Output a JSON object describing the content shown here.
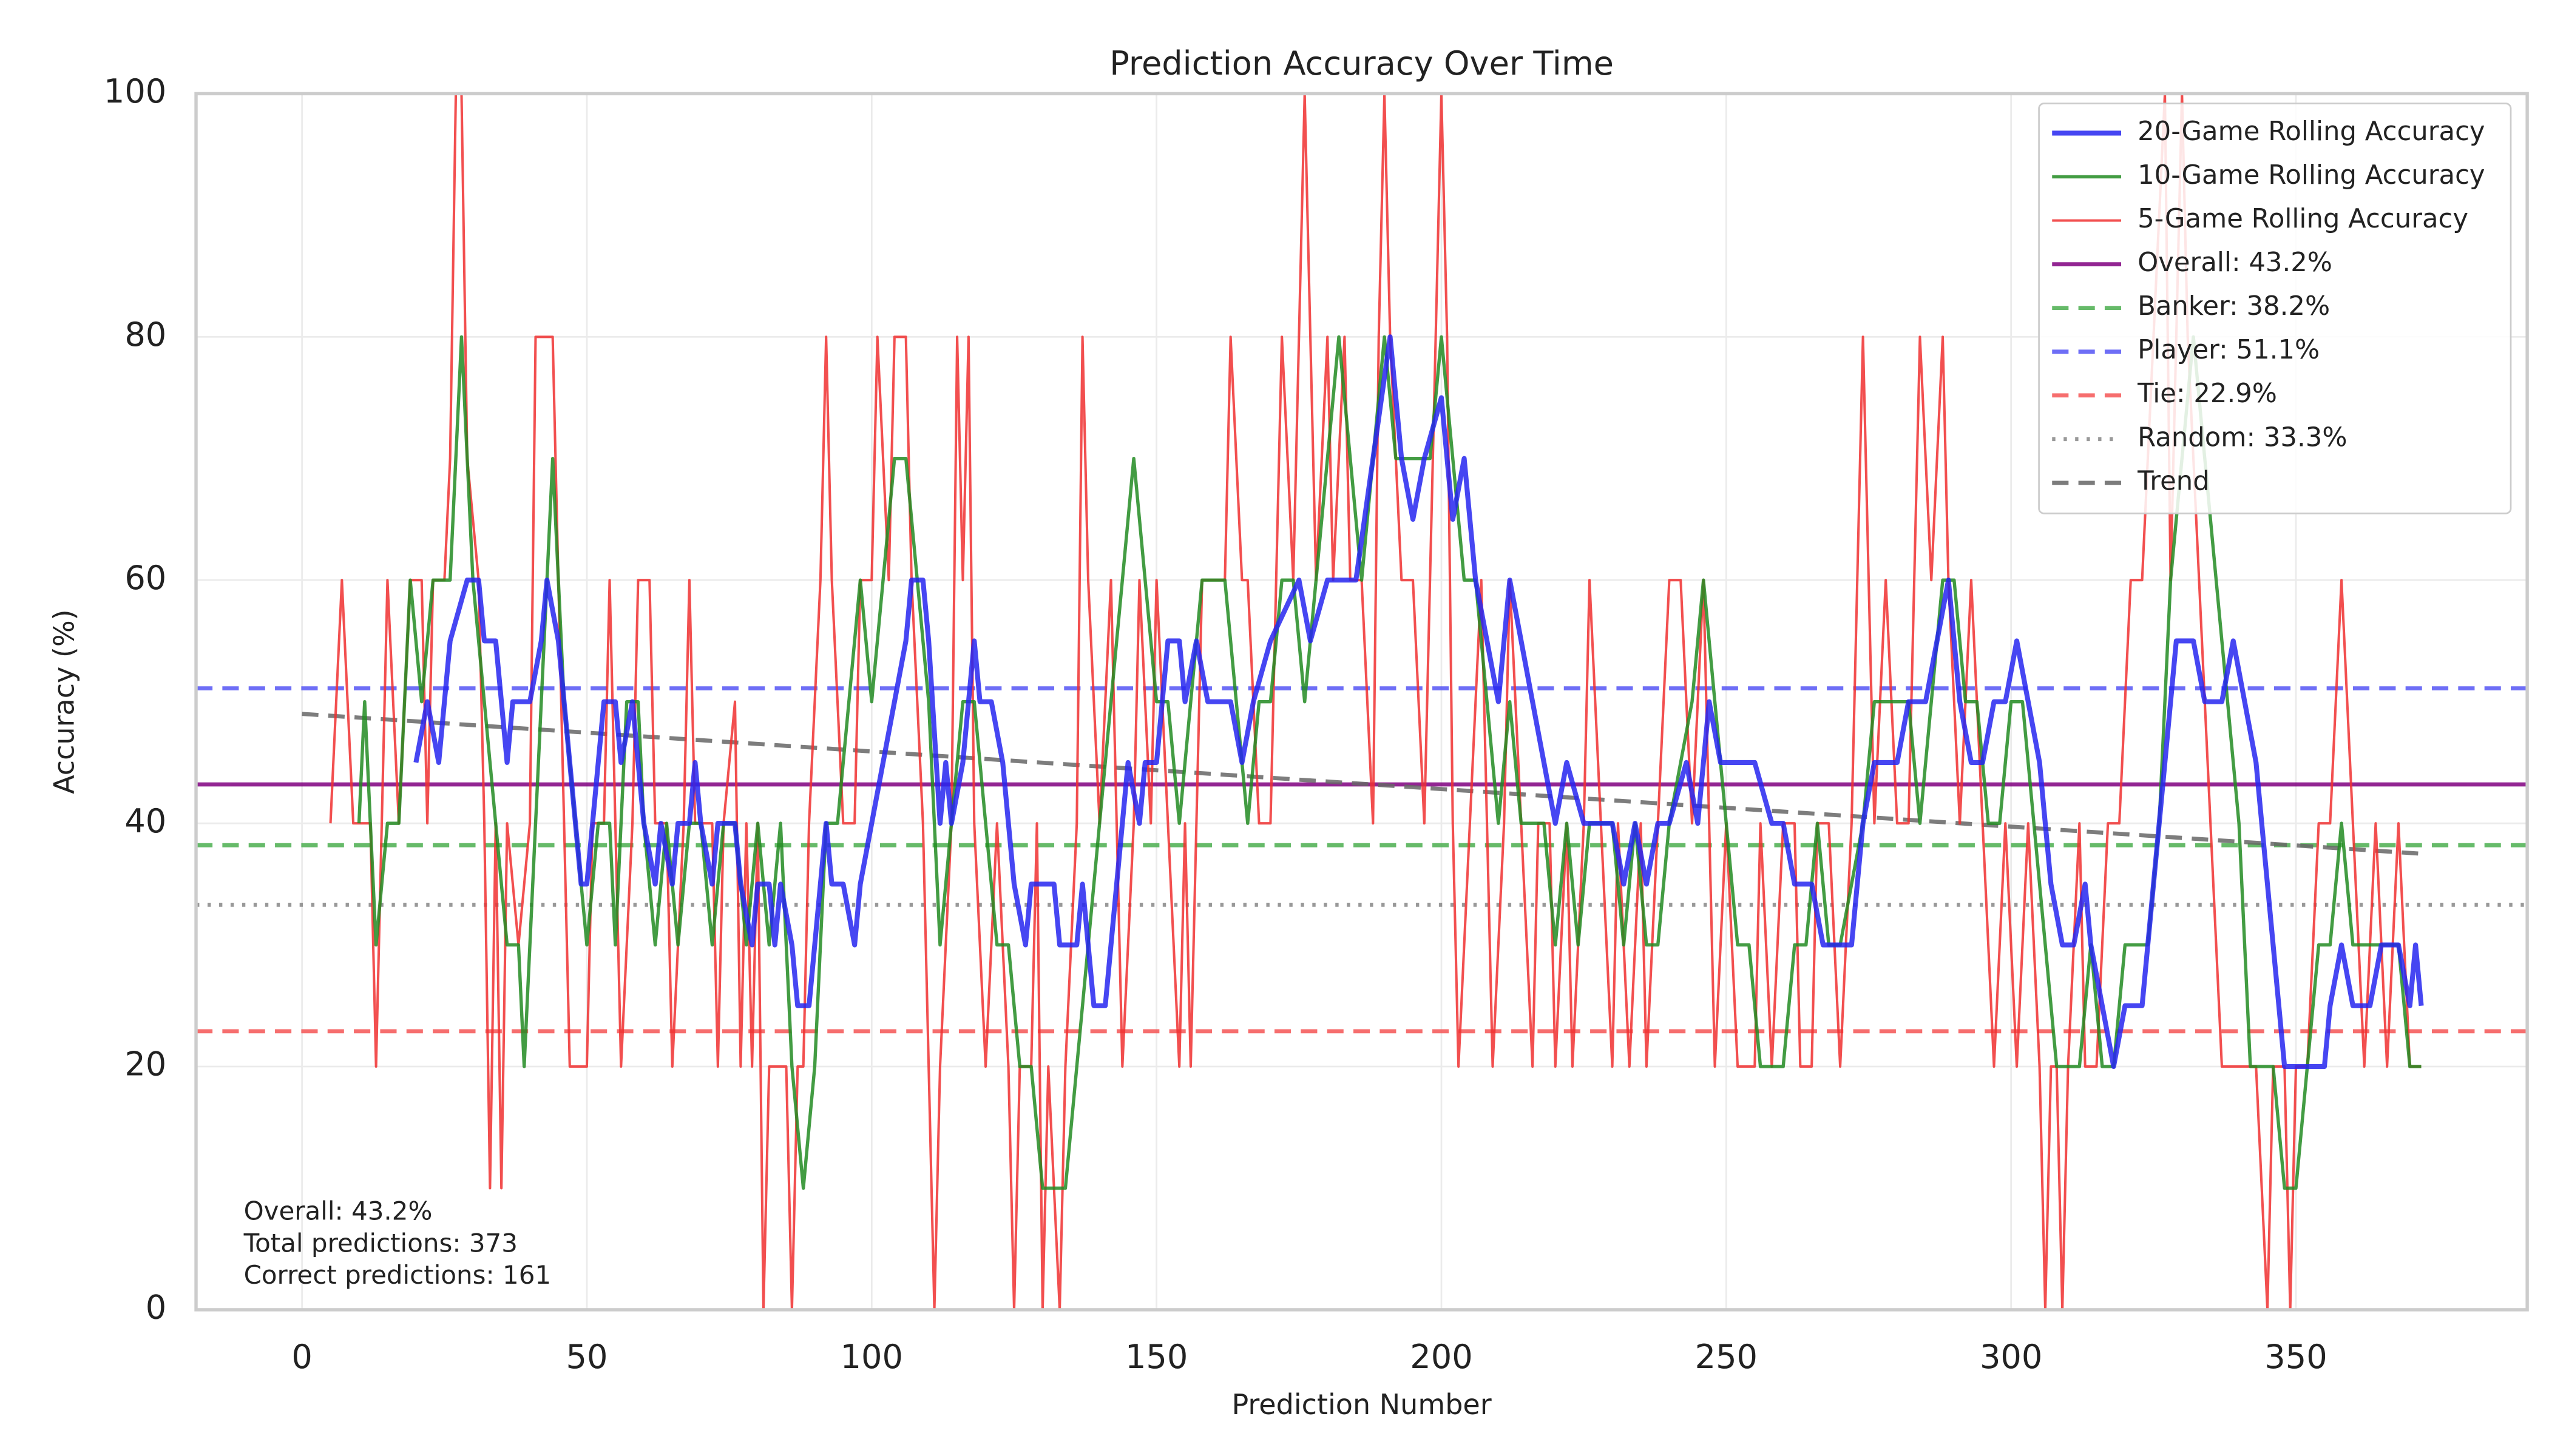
{
  "chart_data": {
    "type": "line",
    "title": "Prediction Accuracy Over Time",
    "x_label": "Prediction Number",
    "y_label": "Accuracy (%)",
    "xlim": [
      -18.6,
      390.6
    ],
    "ylim": [
      0,
      100
    ],
    "xticks": [
      0,
      50,
      100,
      150,
      200,
      250,
      300,
      350
    ],
    "yticks": [
      0,
      20,
      40,
      60,
      80,
      100
    ],
    "grid": true,
    "legend": "upper right",
    "annotation": [
      "Overall: 43.2%",
      "Total predictions: 373",
      "Correct predictions: 161"
    ],
    "series": [
      {
        "name": "20-Game Rolling Accuracy",
        "color": "#2626f0",
        "linestyle": "solid",
        "linewidth": 3,
        "x": [
          20,
          22,
          24,
          26,
          29,
          31,
          32,
          34,
          36,
          37,
          40,
          42,
          43,
          45,
          47,
          49,
          50,
          52,
          53,
          55,
          56,
          58,
          59,
          60,
          62,
          63,
          65,
          66,
          68,
          69,
          70,
          72,
          73,
          76,
          77,
          79,
          80,
          82,
          83,
          84,
          86,
          87,
          89,
          90,
          92,
          93,
          95,
          97,
          98,
          100,
          102,
          104,
          106,
          107,
          109,
          110,
          112,
          113,
          114,
          116,
          118,
          119,
          121,
          123,
          125,
          127,
          128,
          132,
          133,
          136,
          137,
          138,
          139,
          141,
          142,
          144,
          145,
          147,
          148,
          150,
          151,
          152,
          154,
          155,
          157,
          159,
          163,
          165,
          167,
          170,
          175,
          177,
          180,
          185,
          188,
          191,
          193,
          195,
          197,
          200,
          202,
          204,
          206,
          208,
          210,
          212,
          214,
          216,
          218,
          220,
          222,
          225,
          230,
          232,
          234,
          236,
          238,
          240,
          243,
          245,
          247,
          249,
          255,
          258,
          260,
          262,
          265,
          267,
          272,
          274,
          276,
          280,
          282,
          285,
          287,
          289,
          291,
          293,
          295,
          297,
          299,
          301,
          303,
          305,
          307,
          309,
          311,
          313,
          314,
          316,
          318,
          320,
          323,
          325,
          327,
          329,
          332,
          334,
          337,
          339,
          341,
          343,
          345,
          347,
          348,
          355,
          356,
          358,
          360,
          363,
          365,
          368,
          370,
          371,
          372
        ],
        "values": [
          45,
          50,
          45,
          55,
          60,
          60,
          55,
          55,
          45,
          50,
          50,
          55,
          60,
          55,
          45,
          35,
          35,
          45,
          50,
          50,
          45,
          50,
          45,
          40,
          35,
          40,
          35,
          40,
          40,
          45,
          40,
          35,
          40,
          40,
          35,
          30,
          35,
          35,
          30,
          35,
          30,
          25,
          25,
          30,
          40,
          35,
          35,
          30,
          35,
          40,
          45,
          50,
          55,
          60,
          60,
          55,
          40,
          45,
          40,
          45,
          55,
          50,
          50,
          45,
          35,
          30,
          35,
          35,
          30,
          30,
          35,
          30,
          25,
          25,
          30,
          40,
          45,
          40,
          45,
          45,
          50,
          55,
          55,
          50,
          55,
          50,
          50,
          45,
          50,
          55,
          60,
          55,
          60,
          60,
          70,
          80,
          70,
          65,
          70,
          75,
          65,
          70,
          60,
          55,
          50,
          60,
          55,
          50,
          45,
          40,
          45,
          40,
          40,
          35,
          40,
          35,
          40,
          40,
          45,
          40,
          50,
          45,
          45,
          40,
          40,
          35,
          35,
          30,
          30,
          40,
          45,
          45,
          50,
          50,
          55,
          60,
          50,
          45,
          45,
          50,
          50,
          55,
          50,
          45,
          35,
          30,
          30,
          35,
          30,
          25,
          20,
          25,
          25,
          35,
          45,
          55,
          55,
          50,
          50,
          55,
          50,
          45,
          35,
          25,
          20,
          20,
          25,
          30,
          25,
          25,
          30,
          30,
          25,
          30,
          25
        ]
      },
      {
        "name": "10-Game Rolling Accuracy",
        "color": "#228b22",
        "linestyle": "solid",
        "linewidth": 2,
        "x": [
          10,
          11,
          13,
          15,
          17,
          19,
          21,
          23,
          26,
          28,
          30,
          32,
          34,
          36,
          38,
          39,
          41,
          42,
          44,
          46,
          48,
          50,
          52,
          54,
          55,
          57,
          59,
          60,
          62,
          64,
          66,
          68,
          70,
          72,
          74,
          76,
          78,
          80,
          82,
          84,
          86,
          88,
          90,
          92,
          94,
          96,
          98,
          100,
          102,
          104,
          106,
          108,
          110,
          112,
          114,
          116,
          118,
          120,
          122,
          124,
          126,
          128,
          130,
          134,
          136,
          138,
          140,
          142,
          144,
          146,
          148,
          150,
          152,
          154,
          156,
          158,
          162,
          164,
          166,
          168,
          170,
          172,
          174,
          176,
          178,
          180,
          182,
          184,
          186,
          188,
          190,
          192,
          194,
          196,
          198,
          200,
          202,
          204,
          206,
          208,
          210,
          212,
          214,
          216,
          218,
          220,
          222,
          224,
          226,
          228,
          230,
          232,
          234,
          236,
          238,
          240,
          244,
          246,
          248,
          250,
          252,
          254,
          256,
          260,
          262,
          264,
          266,
          268,
          270,
          274,
          276,
          278,
          280,
          282,
          284,
          286,
          288,
          290,
          292,
          294,
          296,
          298,
          300,
          302,
          304,
          306,
          308,
          310,
          312,
          314,
          316,
          318,
          320,
          324,
          326,
          328,
          330,
          332,
          334,
          336,
          338,
          340,
          342,
          346,
          348,
          350,
          352,
          354,
          356,
          358,
          360,
          364,
          366,
          368,
          370,
          372
        ],
        "values": [
          40,
          50,
          30,
          40,
          40,
          60,
          50,
          60,
          60,
          80,
          60,
          50,
          40,
          30,
          30,
          20,
          40,
          50,
          70,
          50,
          40,
          30,
          40,
          40,
          30,
          50,
          50,
          40,
          30,
          40,
          30,
          40,
          40,
          30,
          40,
          40,
          30,
          40,
          30,
          40,
          20,
          10,
          20,
          40,
          40,
          50,
          60,
          50,
          60,
          70,
          70,
          60,
          50,
          30,
          40,
          50,
          50,
          40,
          30,
          30,
          20,
          20,
          10,
          10,
          20,
          30,
          40,
          50,
          60,
          70,
          60,
          50,
          50,
          40,
          50,
          60,
          60,
          50,
          40,
          50,
          50,
          60,
          60,
          50,
          60,
          70,
          80,
          70,
          60,
          70,
          80,
          70,
          70,
          70,
          70,
          80,
          70,
          60,
          60,
          50,
          40,
          50,
          40,
          40,
          40,
          30,
          40,
          30,
          40,
          40,
          40,
          30,
          40,
          30,
          30,
          40,
          50,
          60,
          50,
          40,
          30,
          30,
          20,
          20,
          30,
          30,
          40,
          30,
          30,
          40,
          50,
          50,
          50,
          50,
          40,
          50,
          60,
          60,
          50,
          50,
          40,
          40,
          50,
          50,
          40,
          30,
          20,
          20,
          20,
          30,
          20,
          20,
          30,
          30,
          40,
          60,
          70,
          80,
          70,
          60,
          50,
          40,
          20,
          20,
          10,
          10,
          20,
          30,
          30,
          40,
          30,
          30,
          30,
          30,
          20,
          20
        ]
      },
      {
        "name": "5-Game Rolling Accuracy",
        "color": "#f03030",
        "linestyle": "solid",
        "linewidth": 1.5,
        "x": [
          5,
          7,
          9,
          12,
          13,
          15,
          17,
          19,
          21,
          22,
          23,
          25,
          26,
          27,
          28,
          29,
          31,
          32,
          33,
          34,
          35,
          36,
          38,
          40,
          41,
          44,
          45,
          46,
          47,
          50,
          51,
          53,
          54,
          55,
          56,
          58,
          59,
          61,
          62,
          64,
          65,
          67,
          68,
          69,
          72,
          73,
          74,
          76,
          77,
          78,
          79,
          80,
          81,
          82,
          85,
          86,
          87,
          88,
          89,
          91,
          92,
          93,
          95,
          97,
          98,
          100,
          101,
          103,
          104,
          106,
          107,
          109,
          110,
          111,
          112,
          114,
          115,
          116,
          117,
          118,
          120,
          122,
          124,
          125,
          126,
          128,
          129,
          130,
          131,
          133,
          134,
          136,
          137,
          138,
          140,
          142,
          143,
          144,
          146,
          147,
          149,
          150,
          152,
          154,
          155,
          156,
          158,
          162,
          163,
          165,
          166,
          168,
          170,
          171,
          172,
          174,
          175,
          176,
          177,
          178,
          180,
          181,
          183,
          184,
          186,
          188,
          189,
          190,
          191,
          193,
          195,
          197,
          199,
          200,
          201,
          202,
          203,
          205,
          207,
          208,
          209,
          211,
          212,
          214,
          216,
          217,
          219,
          220,
          222,
          223,
          225,
          226,
          228,
          230,
          231,
          233,
          235,
          236,
          238,
          240,
          242,
          244,
          246,
          248,
          250,
          252,
          255,
          256,
          258,
          260,
          262,
          263,
          265,
          266,
          268,
          270,
          272,
          274,
          276,
          278,
          280,
          282,
          284,
          286,
          288,
          289,
          291,
          293,
          295,
          297,
          299,
          301,
          303,
          305,
          306,
          307,
          308,
          309,
          310,
          312,
          313,
          315,
          317,
          319,
          321,
          323,
          325,
          327,
          328,
          330,
          331,
          333,
          335,
          337,
          340,
          343,
          345,
          346,
          348,
          349,
          350,
          352,
          354,
          356,
          358,
          360,
          362,
          364,
          366,
          368,
          370,
          372
        ],
        "values": [
          40,
          60,
          40,
          40,
          20,
          60,
          40,
          60,
          60,
          40,
          60,
          60,
          70,
          100,
          100,
          70,
          60,
          40,
          10,
          40,
          10,
          40,
          30,
          40,
          80,
          80,
          60,
          40,
          20,
          20,
          40,
          40,
          60,
          40,
          20,
          40,
          60,
          60,
          40,
          40,
          20,
          40,
          60,
          40,
          40,
          20,
          40,
          50,
          20,
          40,
          20,
          40,
          0,
          20,
          20,
          0,
          20,
          20,
          40,
          60,
          80,
          60,
          40,
          40,
          60,
          60,
          80,
          60,
          80,
          80,
          60,
          40,
          20,
          0,
          20,
          40,
          80,
          60,
          80,
          40,
          20,
          40,
          20,
          0,
          20,
          20,
          40,
          0,
          20,
          0,
          20,
          40,
          80,
          60,
          40,
          60,
          40,
          20,
          40,
          60,
          40,
          60,
          40,
          20,
          40,
          20,
          60,
          60,
          80,
          60,
          60,
          40,
          40,
          60,
          80,
          60,
          80,
          100,
          80,
          60,
          80,
          60,
          80,
          60,
          60,
          40,
          80,
          100,
          80,
          60,
          60,
          40,
          80,
          100,
          80,
          40,
          20,
          40,
          60,
          40,
          20,
          40,
          60,
          40,
          20,
          40,
          40,
          20,
          40,
          20,
          40,
          60,
          40,
          20,
          40,
          20,
          40,
          20,
          40,
          60,
          60,
          40,
          60,
          20,
          40,
          20,
          20,
          40,
          20,
          40,
          40,
          20,
          20,
          40,
          40,
          20,
          40,
          80,
          40,
          60,
          40,
          40,
          80,
          60,
          80,
          60,
          40,
          60,
          40,
          20,
          40,
          20,
          40,
          20,
          0,
          20,
          20,
          0,
          20,
          40,
          20,
          20,
          40,
          40,
          60,
          60,
          80,
          100,
          60,
          100,
          80,
          60,
          40,
          20,
          20,
          20,
          0,
          20,
          20,
          0,
          20,
          20,
          40,
          40,
          60,
          40,
          20,
          40,
          20,
          40,
          20,
          20
        ]
      },
      {
        "name": "Overall: 43.2%",
        "color": "#800080",
        "linestyle": "solid",
        "linewidth": 2.5,
        "value": 43.2
      },
      {
        "name": "Banker: 38.2%",
        "color": "#4caf50",
        "linestyle": "dashed",
        "linewidth": 2.5,
        "value": 38.2
      },
      {
        "name": "Player: 51.1%",
        "color": "#5555f5",
        "linestyle": "dashed",
        "linewidth": 2.5,
        "value": 51.1
      },
      {
        "name": "Tie: 22.9%",
        "color": "#f55555",
        "linestyle": "dashed",
        "linewidth": 2.5,
        "value": 22.9
      },
      {
        "name": "Random: 33.3%",
        "color": "#888888",
        "linestyle": "dotted",
        "linewidth": 2.5,
        "value": 33.3
      },
      {
        "name": "Trend",
        "color": "#666666",
        "linestyle": "dashed",
        "linewidth": 2.5,
        "x": [
          0,
          372
        ],
        "values": [
          49,
          37.5
        ]
      }
    ]
  }
}
